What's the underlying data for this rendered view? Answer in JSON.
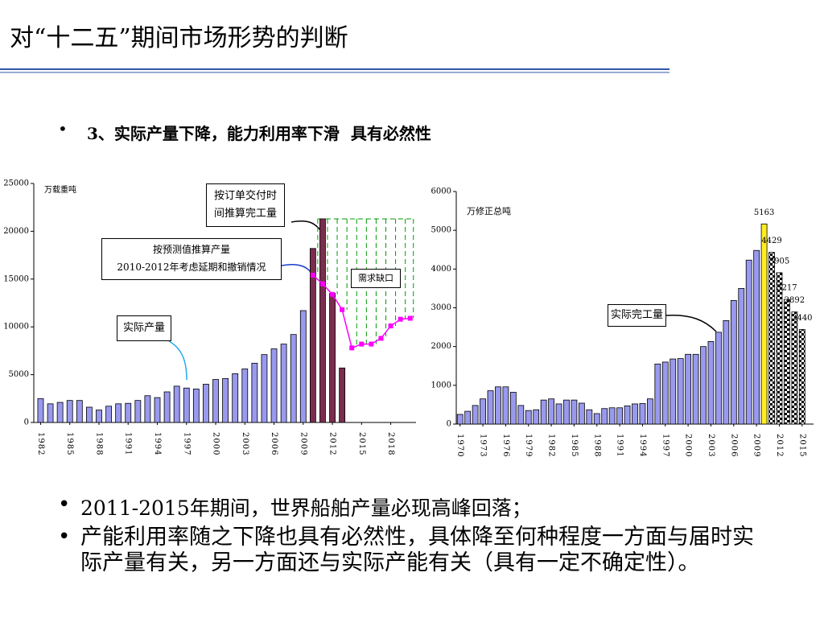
{
  "header": {
    "title": "对“十二五”期间市场形势的判断"
  },
  "subtitle": "3、实际产量下降，能力利用率下滑  具有必然性",
  "bullets": [
    "2011-2015年期间，世界船舶产量必现高峰回落；",
    "产能利用率随之下降也具有必然性，具体降至何种程度一方面与届时实际产量有关，另一方面还与实际产能有关（具有一定不确定性）。"
  ],
  "chart_data": [
    {
      "type": "bar",
      "unit_label": "万载重吨",
      "x": [
        1982,
        1983,
        1984,
        1985,
        1986,
        1987,
        1988,
        1989,
        1990,
        1991,
        1992,
        1993,
        1994,
        1995,
        1996,
        1997,
        1998,
        1999,
        2000,
        2001,
        2002,
        2003,
        2004,
        2005,
        2006,
        2007,
        2008,
        2009,
        2010,
        2011,
        2012,
        2013,
        2014,
        2015,
        2016,
        2017,
        2018,
        2019,
        2020
      ],
      "xlim": [
        1981.3,
        2020.6
      ],
      "xticks": [
        1982,
        1985,
        1988,
        1991,
        1994,
        1997,
        2000,
        2003,
        2006,
        2009,
        2012,
        2015,
        2018
      ],
      "ylim": [
        0,
        25000
      ],
      "yticks": [
        0,
        5000,
        10000,
        15000,
        20000,
        25000
      ],
      "series": [
        {
          "name": "实际产量",
          "type": "bar",
          "color": "#9999ee",
          "values": [
            2500,
            1950,
            2100,
            2300,
            2300,
            1600,
            1300,
            1700,
            1950,
            2000,
            2300,
            2800,
            2600,
            3200,
            3800,
            3600,
            3500,
            4000,
            4500,
            4600,
            5100,
            5600,
            6200,
            7100,
            7700,
            8200,
            9200,
            11700,
            null,
            null,
            null,
            null,
            null,
            null,
            null,
            null,
            null,
            null,
            null
          ]
        },
        {
          "name": "按订单交付时间推算完工量",
          "type": "bar",
          "color": "#7b2d4f",
          "values": [
            null,
            null,
            null,
            null,
            null,
            null,
            null,
            null,
            null,
            null,
            null,
            null,
            null,
            null,
            null,
            null,
            null,
            null,
            null,
            null,
            null,
            null,
            null,
            null,
            null,
            null,
            null,
            null,
            18200,
            21300,
            13500,
            5700,
            null,
            null,
            null,
            null,
            null,
            null,
            null
          ]
        },
        {
          "name": "按预测值推算产量",
          "detail": "2010-2012年考虑延期和撤销情况",
          "type": "line",
          "color": "#ff00ff",
          "values": [
            null,
            null,
            null,
            null,
            null,
            null,
            null,
            null,
            null,
            null,
            null,
            null,
            null,
            null,
            null,
            null,
            null,
            null,
            null,
            null,
            null,
            null,
            null,
            null,
            null,
            null,
            null,
            null,
            15400,
            14500,
            13400,
            11800,
            7800,
            8200,
            8200,
            8800,
            10100,
            10800,
            10900
          ]
        }
      ],
      "annotations": [
        {
          "text": "需求缺口",
          "color": "#009900"
        }
      ]
    },
    {
      "type": "bar",
      "unit_label": "万修正总吨",
      "x": [
        1970,
        1971,
        1972,
        1973,
        1974,
        1975,
        1976,
        1977,
        1978,
        1979,
        1980,
        1981,
        1982,
        1983,
        1984,
        1985,
        1986,
        1987,
        1988,
        1989,
        1990,
        1991,
        1992,
        1993,
        1994,
        1995,
        1996,
        1997,
        1998,
        1999,
        2000,
        2001,
        2002,
        2003,
        2004,
        2005,
        2006,
        2007,
        2008,
        2009,
        2010,
        2011,
        2012,
        2013,
        2014,
        2015
      ],
      "xlim": [
        1969.5,
        2016.5
      ],
      "xticks": [
        1970,
        1973,
        1976,
        1979,
        1982,
        1985,
        1988,
        1991,
        1994,
        1997,
        2000,
        2003,
        2006,
        2009,
        2012,
        2015
      ],
      "ylim": [
        0,
        6000
      ],
      "yticks": [
        0,
        1000,
        2000,
        3000,
        4000,
        5000,
        6000
      ],
      "series": [
        {
          "name": "实际完工量",
          "type": "bar",
          "color": "#9999ee",
          "values": [
            250,
            330,
            480,
            650,
            860,
            960,
            960,
            820,
            480,
            350,
            370,
            620,
            650,
            520,
            620,
            620,
            540,
            370,
            270,
            400,
            420,
            420,
            470,
            520,
            530,
            650,
            1550,
            1600,
            1680,
            1690,
            1800,
            1800,
            2000,
            2130,
            2370,
            2670,
            3190,
            3500,
            4230,
            4480,
            null,
            null,
            null,
            null,
            null,
            null
          ]
        },
        {
          "type": "bar",
          "color": "#ffee22",
          "show_values": true,
          "values": [
            null,
            null,
            null,
            null,
            null,
            null,
            null,
            null,
            null,
            null,
            null,
            null,
            null,
            null,
            null,
            null,
            null,
            null,
            null,
            null,
            null,
            null,
            null,
            null,
            null,
            null,
            null,
            null,
            null,
            null,
            null,
            null,
            null,
            null,
            null,
            null,
            null,
            null,
            null,
            null,
            5163,
            null,
            null,
            null,
            null,
            null
          ]
        },
        {
          "type": "bar",
          "color": "#000000",
          "pattern": "checker",
          "show_values": true,
          "values": [
            null,
            null,
            null,
            null,
            null,
            null,
            null,
            null,
            null,
            null,
            null,
            null,
            null,
            null,
            null,
            null,
            null,
            null,
            null,
            null,
            null,
            null,
            null,
            null,
            null,
            null,
            null,
            null,
            null,
            null,
            null,
            null,
            null,
            null,
            null,
            null,
            null,
            null,
            null,
            null,
            null,
            4429,
            3905,
            3217,
            2892,
            2440
          ]
        }
      ]
    }
  ]
}
